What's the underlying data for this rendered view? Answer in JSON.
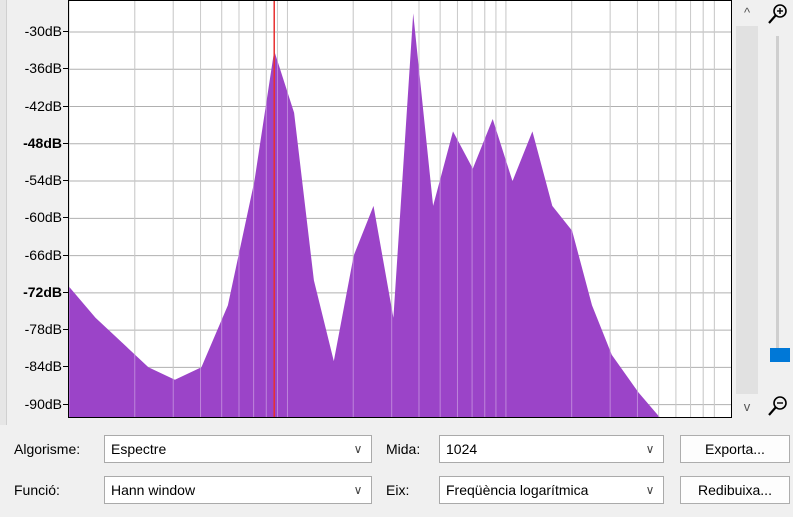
{
  "chart_data": {
    "type": "area",
    "y_axis": {
      "unit": "dB",
      "ylim": [
        -92,
        -25
      ],
      "ticks": [
        {
          "value": -30,
          "label": "-30dB",
          "major": false
        },
        {
          "value": -36,
          "label": "-36dB",
          "major": false
        },
        {
          "value": -42,
          "label": "-42dB",
          "major": false
        },
        {
          "value": -48,
          "label": "-48dB",
          "major": true
        },
        {
          "value": -54,
          "label": "-54dB",
          "major": false
        },
        {
          "value": -60,
          "label": "-60dB",
          "major": false
        },
        {
          "value": -66,
          "label": "-66dB",
          "major": false
        },
        {
          "value": -72,
          "label": "-72dB",
          "major": true
        },
        {
          "value": -78,
          "label": "-78dB",
          "major": false
        },
        {
          "value": -84,
          "label": "-84dB",
          "major": false
        },
        {
          "value": -90,
          "label": "-90dB",
          "major": false
        }
      ]
    },
    "x_scale": "log",
    "x_fraction_points": [
      0,
      0.04,
      0.08,
      0.12,
      0.16,
      0.2,
      0.24,
      0.28,
      0.31,
      0.34,
      0.37,
      0.4,
      0.43,
      0.46,
      0.49,
      0.52,
      0.55,
      0.58,
      0.61,
      0.64,
      0.67,
      0.7,
      0.73,
      0.76,
      0.79,
      0.82,
      0.86,
      0.9,
      0.95,
      1.0
    ],
    "spectrum_db": [
      -71,
      -76,
      -80,
      -84,
      -86,
      -84,
      -74,
      -54,
      -33,
      -43,
      -70,
      -83,
      -66,
      -58,
      -76,
      -27,
      -58,
      -46,
      -52,
      -44,
      -54,
      -46,
      -58,
      -62,
      -74,
      -82,
      -88,
      -93,
      -95,
      -96
    ],
    "cursor_fraction": 0.31,
    "grid": true
  },
  "scrollbar": {
    "up_glyph": "^",
    "down_glyph": "v"
  },
  "controls": {
    "algorithm": {
      "label": "Algorisme:",
      "value": "Espectre"
    },
    "function": {
      "label": "Funció:",
      "value": "Hann window"
    },
    "size": {
      "label": "Mida:",
      "value": "1024"
    },
    "axis": {
      "label": "Eix:",
      "value": "Freqüència logarítmica"
    },
    "export_label": "Exporta...",
    "redraw_label": "Redibuixa...",
    "dropdown_glyph": "∨"
  },
  "zoom": {
    "level_fraction": 0.97
  },
  "colors": {
    "spectrum": "#9b44c8",
    "cursor": "#e83030",
    "grid": "#b0b0b0"
  }
}
